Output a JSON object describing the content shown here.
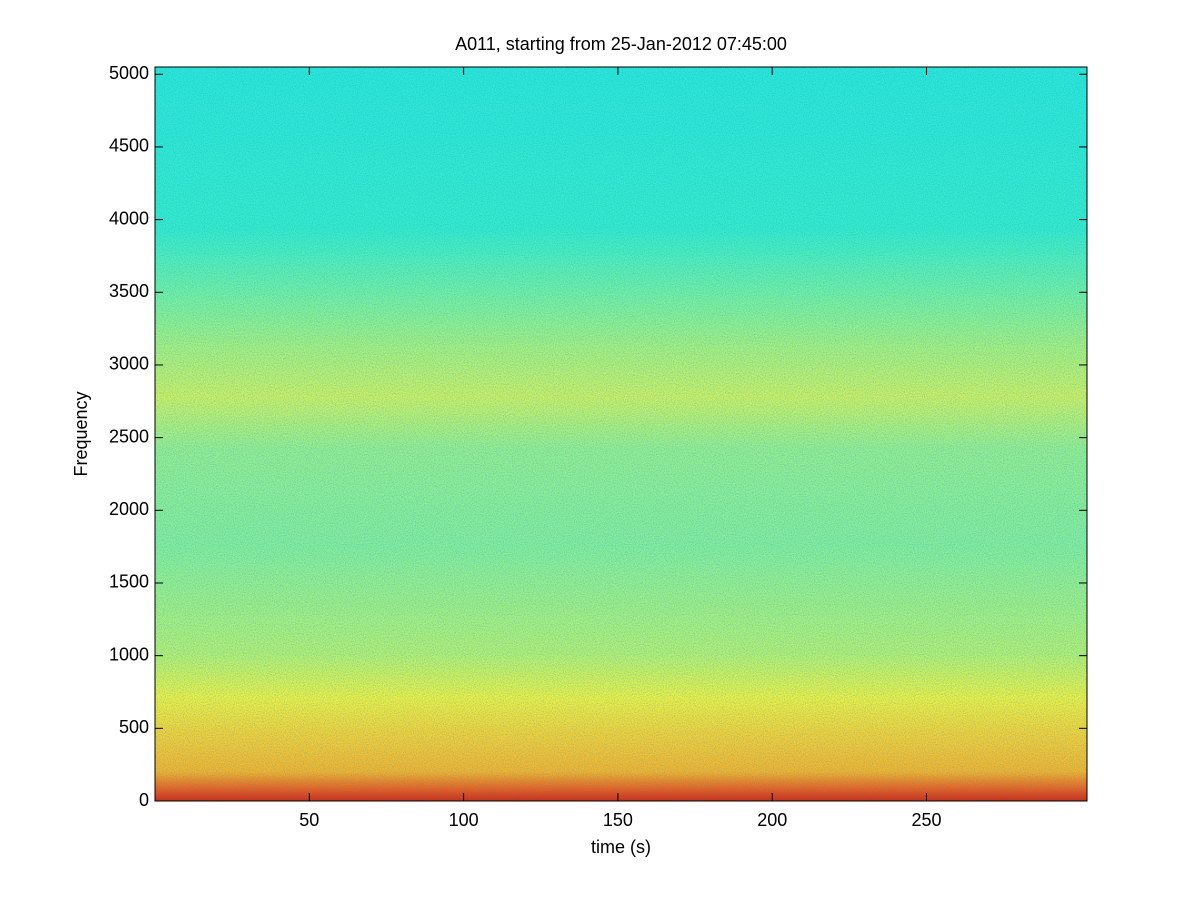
{
  "chart_data": {
    "type": "spectrogram",
    "title": "A011, starting from 25-Jan-2012 07:45:00",
    "x_label": "time (s)",
    "y_label": "Frequency",
    "xlim": [
      0,
      302
    ],
    "xticks": [
      50,
      100,
      150,
      200,
      250
    ],
    "ylim": [
      0,
      5050
    ],
    "yticks": [
      0,
      500,
      1000,
      1500,
      2000,
      2500,
      3000,
      3500,
      4000,
      4500,
      5000
    ],
    "colormap": "jet"
  }
}
